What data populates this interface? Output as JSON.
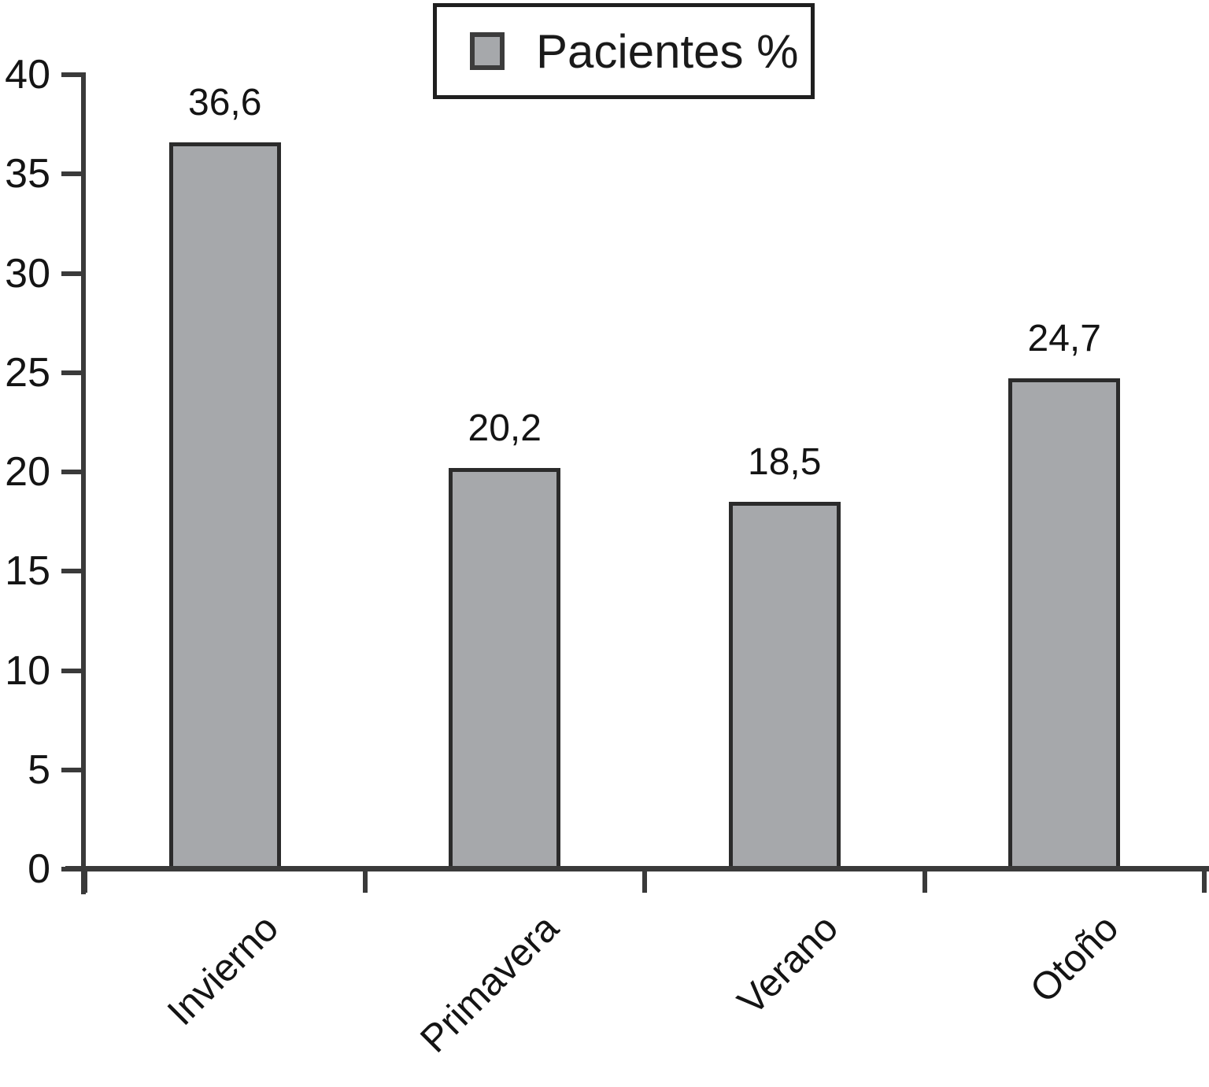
{
  "chart_data": {
    "type": "bar",
    "title": "",
    "xlabel": "",
    "ylabel": "",
    "categories": [
      "Invierno",
      "Primavera",
      "Verano",
      "Otoño"
    ],
    "values": [
      36.6,
      20.2,
      18.5,
      24.7
    ],
    "value_labels": [
      "36,6",
      "20,2",
      "18,5",
      "24,7"
    ],
    "legend": {
      "label": "Pacientes %",
      "position": "top-center"
    },
    "ylim": [
      0,
      40
    ],
    "ytick_step": 5,
    "ytick_labels": [
      "0",
      "5",
      "10",
      "15",
      "20",
      "25",
      "30",
      "35",
      "40"
    ],
    "grid": false,
    "x_tick_marks": "category-boundaries",
    "x_label_rotation_deg": 45,
    "colors": {
      "bar_fill": "#a6a8ab",
      "bar_border": "#2b2b2b",
      "axis": "#3a3a3a",
      "text": "#141414",
      "background": "#ffffff"
    }
  }
}
